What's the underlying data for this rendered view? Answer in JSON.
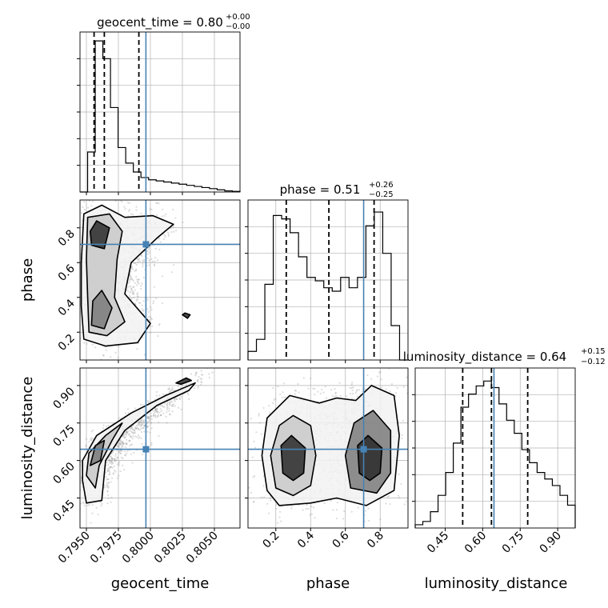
{
  "chart_data": {
    "type": "corner",
    "parameters": [
      {
        "key": "geocent_time",
        "label": "geocent_time",
        "range": [
          0.7945,
          0.807
        ],
        "ticks": [
          0.795,
          0.7975,
          0.8,
          0.8025,
          0.805
        ],
        "tick_labels": [
          "0.7950",
          "0.7975",
          "0.8000",
          "0.8025",
          "0.8050"
        ],
        "title_prefix": "geocent_time = ",
        "title_value": "0.80",
        "title_plus": "+0.00",
        "title_minus": "−0.00",
        "quantiles": [
          0.7956,
          0.7964,
          0.7991
        ],
        "truth": 0.79965,
        "histogram": [
          0,
          0.18,
          0.68,
          0.6,
          0.38,
          0.2,
          0.13,
          0.09,
          0.065,
          0.055,
          0.05,
          0.045,
          0.04,
          0.035,
          0.03,
          0.025,
          0.02,
          0.015,
          0.01,
          0.005,
          0.003
        ],
        "hist_ymax": 0.72
      },
      {
        "key": "phase",
        "label": "phase",
        "range": [
          0.04,
          0.96
        ],
        "ticks": [
          0.2,
          0.4,
          0.6,
          0.8
        ],
        "tick_labels": [
          "0.2",
          "0.4",
          "0.6",
          "0.8"
        ],
        "title_prefix": "phase = ",
        "title_value": "0.51",
        "title_plus": "+0.26",
        "title_minus": "−0.25",
        "quantiles": [
          0.26,
          0.505,
          0.765
        ],
        "truth": 0.705,
        "histogram": [
          0.05,
          0.12,
          0.44,
          0.84,
          0.82,
          0.74,
          0.6,
          0.48,
          0.46,
          0.42,
          0.4,
          0.48,
          0.42,
          0.48,
          0.78,
          0.86,
          0.62,
          0.2,
          0
        ],
        "hist_ymax": 0.93
      },
      {
        "key": "luminosity_distance",
        "label": "luminosity_distance",
        "range": [
          0.33,
          0.97
        ],
        "ticks": [
          0.45,
          0.6,
          0.75,
          0.9
        ],
        "tick_labels": [
          "0.45",
          "0.60",
          "0.75",
          "0.90"
        ],
        "title_prefix": "luminosity_distance = ",
        "title_value": "0.64",
        "title_plus": "+0.15",
        "title_minus": "−0.12",
        "quantiles": [
          0.52,
          0.635,
          0.78
        ],
        "truth": 0.645,
        "histogram": [
          0.02,
          0.04,
          0.1,
          0.2,
          0.34,
          0.52,
          0.74,
          0.82,
          0.87,
          0.9,
          0.86,
          0.76,
          0.66,
          0.58,
          0.48,
          0.4,
          0.34,
          0.3,
          0.26,
          0.2,
          0.14
        ],
        "hist_ymax": 0.98
      }
    ],
    "pairs": [
      {
        "x": "geocent_time",
        "y": "phase",
        "contour_levels": [
          [
            [
              0.7948,
              0.16
            ],
            [
              0.7965,
              0.12
            ],
            [
              0.799,
              0.14
            ],
            [
              0.8,
              0.25
            ],
            [
              0.798,
              0.42
            ],
            [
              0.7985,
              0.6
            ],
            [
              0.8005,
              0.74
            ],
            [
              0.8018,
              0.82
            ],
            [
              0.8002,
              0.87
            ],
            [
              0.798,
              0.86
            ],
            [
              0.7962,
              0.93
            ],
            [
              0.7948,
              0.88
            ],
            [
              0.7946,
              0.6
            ],
            [
              0.7946,
              0.35
            ]
          ],
          [
            [
              0.7952,
              0.2
            ],
            [
              0.7966,
              0.18
            ],
            [
              0.798,
              0.26
            ],
            [
              0.7972,
              0.4
            ],
            [
              0.7974,
              0.62
            ],
            [
              0.7978,
              0.78
            ],
            [
              0.7968,
              0.88
            ],
            [
              0.7951,
              0.86
            ],
            [
              0.795,
              0.62
            ],
            [
              0.7951,
              0.4
            ]
          ],
          [
            [
              0.7954,
              0.24
            ],
            [
              0.7964,
              0.22
            ],
            [
              0.797,
              0.34
            ],
            [
              0.7962,
              0.44
            ],
            [
              0.7955,
              0.38
            ]
          ],
          [
            [
              0.7954,
              0.7
            ],
            [
              0.7964,
              0.68
            ],
            [
              0.7968,
              0.8
            ],
            [
              0.7958,
              0.84
            ],
            [
              0.7953,
              0.78
            ]
          ],
          [
            [
              0.8027,
              0.31
            ],
            [
              0.8031,
              0.3
            ],
            [
              0.8029,
              0.28
            ],
            [
              0.8025,
              0.3
            ]
          ]
        ],
        "truth": [
          0.79965,
          0.705
        ]
      },
      {
        "x": "geocent_time",
        "y": "luminosity_distance",
        "contour_levels": [
          [
            [
              0.7947,
              0.52
            ],
            [
              0.7947,
              0.6
            ],
            [
              0.7958,
              0.7
            ],
            [
              0.7985,
              0.79
            ],
            [
              0.8012,
              0.86
            ],
            [
              0.8035,
              0.91
            ],
            [
              0.803,
              0.88
            ],
            [
              0.8005,
              0.82
            ],
            [
              0.798,
              0.72
            ],
            [
              0.7965,
              0.6
            ],
            [
              0.7962,
              0.44
            ],
            [
              0.795,
              0.43
            ]
          ],
          [
            [
              0.795,
              0.54
            ],
            [
              0.7952,
              0.63
            ],
            [
              0.7965,
              0.7
            ],
            [
              0.7978,
              0.75
            ],
            [
              0.797,
              0.68
            ],
            [
              0.796,
              0.58
            ],
            [
              0.7957,
              0.49
            ]
          ],
          [
            [
              0.7953,
              0.58
            ],
            [
              0.7957,
              0.66
            ],
            [
              0.7964,
              0.68
            ],
            [
              0.7961,
              0.6
            ]
          ],
          [
            [
              0.802,
              0.91
            ],
            [
              0.8028,
              0.93
            ],
            [
              0.8032,
              0.92
            ],
            [
              0.8024,
              0.905
            ]
          ]
        ],
        "truth": [
          0.79965,
          0.645
        ]
      },
      {
        "x": "phase",
        "y": "luminosity_distance",
        "contour_levels": [
          [
            [
              0.15,
              0.48
            ],
            [
              0.12,
              0.62
            ],
            [
              0.15,
              0.77
            ],
            [
              0.28,
              0.86
            ],
            [
              0.45,
              0.83
            ],
            [
              0.55,
              0.85
            ],
            [
              0.66,
              0.84
            ],
            [
              0.75,
              0.9
            ],
            [
              0.88,
              0.86
            ],
            [
              0.91,
              0.7
            ],
            [
              0.88,
              0.48
            ],
            [
              0.72,
              0.42
            ],
            [
              0.55,
              0.45
            ],
            [
              0.4,
              0.43
            ],
            [
              0.22,
              0.42
            ]
          ],
          [
            [
              0.2,
              0.49
            ],
            [
              0.17,
              0.62
            ],
            [
              0.22,
              0.74
            ],
            [
              0.3,
              0.78
            ],
            [
              0.4,
              0.74
            ],
            [
              0.43,
              0.62
            ],
            [
              0.4,
              0.5
            ],
            [
              0.3,
              0.46
            ]
          ],
          [
            [
              0.63,
              0.49
            ],
            [
              0.6,
              0.62
            ],
            [
              0.65,
              0.75
            ],
            [
              0.76,
              0.8
            ],
            [
              0.86,
              0.72
            ],
            [
              0.86,
              0.55
            ],
            [
              0.78,
              0.47
            ]
          ],
          [
            [
              0.24,
              0.55
            ],
            [
              0.23,
              0.66
            ],
            [
              0.29,
              0.7
            ],
            [
              0.37,
              0.65
            ],
            [
              0.36,
              0.55
            ],
            [
              0.3,
              0.52
            ]
          ],
          [
            [
              0.68,
              0.55
            ],
            [
              0.67,
              0.66
            ],
            [
              0.73,
              0.7
            ],
            [
              0.81,
              0.65
            ],
            [
              0.8,
              0.55
            ],
            [
              0.74,
              0.52
            ]
          ]
        ],
        "truth": [
          0.705,
          0.645
        ]
      }
    ],
    "colors": {
      "truth": "#4682b4",
      "contour": "#000000",
      "quantile": "#000000",
      "grid": "#b0b0b0",
      "scatter": "#9a9a9a"
    }
  }
}
